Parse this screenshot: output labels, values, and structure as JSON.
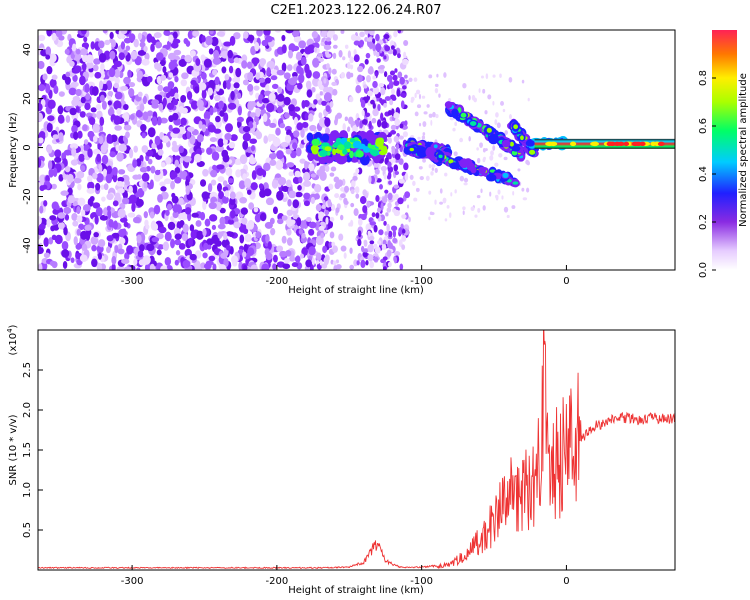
{
  "figure": {
    "title": "C2E1.2023.122.06.24.R07"
  },
  "chart_data": [
    {
      "type": "heatmap",
      "xlabel": "Height of straight line (km)",
      "ylabel": "Frequency (Hz)",
      "xlim": [
        -365,
        75
      ],
      "ylim": [
        -50,
        48
      ],
      "x_ticks": [
        -300,
        -200,
        -100,
        0
      ],
      "y_ticks": [
        -40,
        -20,
        0,
        20,
        40
      ],
      "grid": false,
      "colorbar": {
        "label": "Normalized spectral amplitude",
        "ticks": [
          0.0,
          0.2,
          0.4,
          0.6,
          0.8
        ],
        "range": [
          0,
          1
        ],
        "colormap": "rainbow (white-purple-blue-cyan-green-yellow-red)"
      },
      "features": {
        "noise_band_x": [
          -365,
          -175
        ],
        "noise_column_x": [
          -145,
          -110
        ],
        "carrier_band": {
          "x": [
            -175,
            75
          ],
          "freq": 1.5
        },
        "upper_arc": {
          "x": [
            -82,
            -30
          ],
          "freq": [
            17,
            -3
          ]
        },
        "lower_arc": {
          "x": [
            -110,
            -35
          ],
          "freq": [
            0,
            -14
          ]
        },
        "small_arc": {
          "x": [
            -38,
            -22
          ],
          "freq": [
            10,
            -2
          ]
        }
      }
    },
    {
      "type": "line",
      "xlabel": "Height of straight line (km)",
      "ylabel": "SNR (10 * v/v)",
      "y_scale_label": "(x10",
      "y_scale_exp": "4",
      "y_scale_close": ")",
      "xlim": [
        -365,
        75
      ],
      "ylim": [
        0,
        3.0
      ],
      "x_ticks": [
        -300,
        -200,
        -100,
        0
      ],
      "y_ticks": [
        0.5,
        1.0,
        1.5,
        2.0,
        2.5
      ],
      "y_tick_labels": [
        "0.5",
        "1.0",
        "1.5",
        "2.0",
        "2.5"
      ],
      "grid": false,
      "series": [
        {
          "color": "#ee3333",
          "x": [
            -365,
            -300,
            -250,
            -200,
            -170,
            -150,
            -140,
            -135,
            -130,
            -125,
            -115,
            -100,
            -85,
            -70,
            -60,
            -50,
            -40,
            -30,
            -20,
            -15,
            -13,
            -10,
            -5,
            0,
            10,
            20,
            30,
            40,
            50,
            60,
            75
          ],
          "y": [
            0.02,
            0.02,
            0.02,
            0.02,
            0.02,
            0.03,
            0.08,
            0.2,
            0.3,
            0.1,
            0.03,
            0.03,
            0.05,
            0.18,
            0.35,
            0.6,
            0.9,
            1.0,
            1.05,
            2.95,
            1.2,
            1.25,
            1.35,
            1.45,
            1.65,
            1.8,
            1.87,
            1.9,
            1.88,
            1.9,
            1.88
          ]
        }
      ]
    }
  ]
}
